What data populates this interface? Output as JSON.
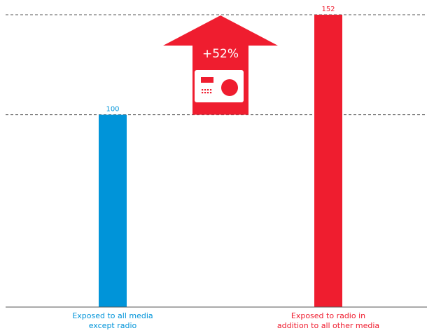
{
  "chart_data": {
    "type": "bar",
    "categories": [
      "Exposed to all media\nexcept radio",
      "Exposed to radio in\naddition to all other media"
    ],
    "values": [
      100,
      152
    ],
    "data_labels": [
      "100",
      "152"
    ],
    "ylim": [
      0,
      152
    ],
    "reference_lines": [
      100,
      152
    ],
    "annotation": {
      "text": "+52%",
      "icon": "radio-icon"
    },
    "grid": false,
    "legend": "none"
  },
  "colors": {
    "bar_1": "#0094d9",
    "bar_2": "#ef1d2f",
    "arrow": "#ef1d2f",
    "label_1": "#0094d9",
    "label_2": "#ef1d2f",
    "reference_line": "#555555",
    "axis": "#555555"
  }
}
